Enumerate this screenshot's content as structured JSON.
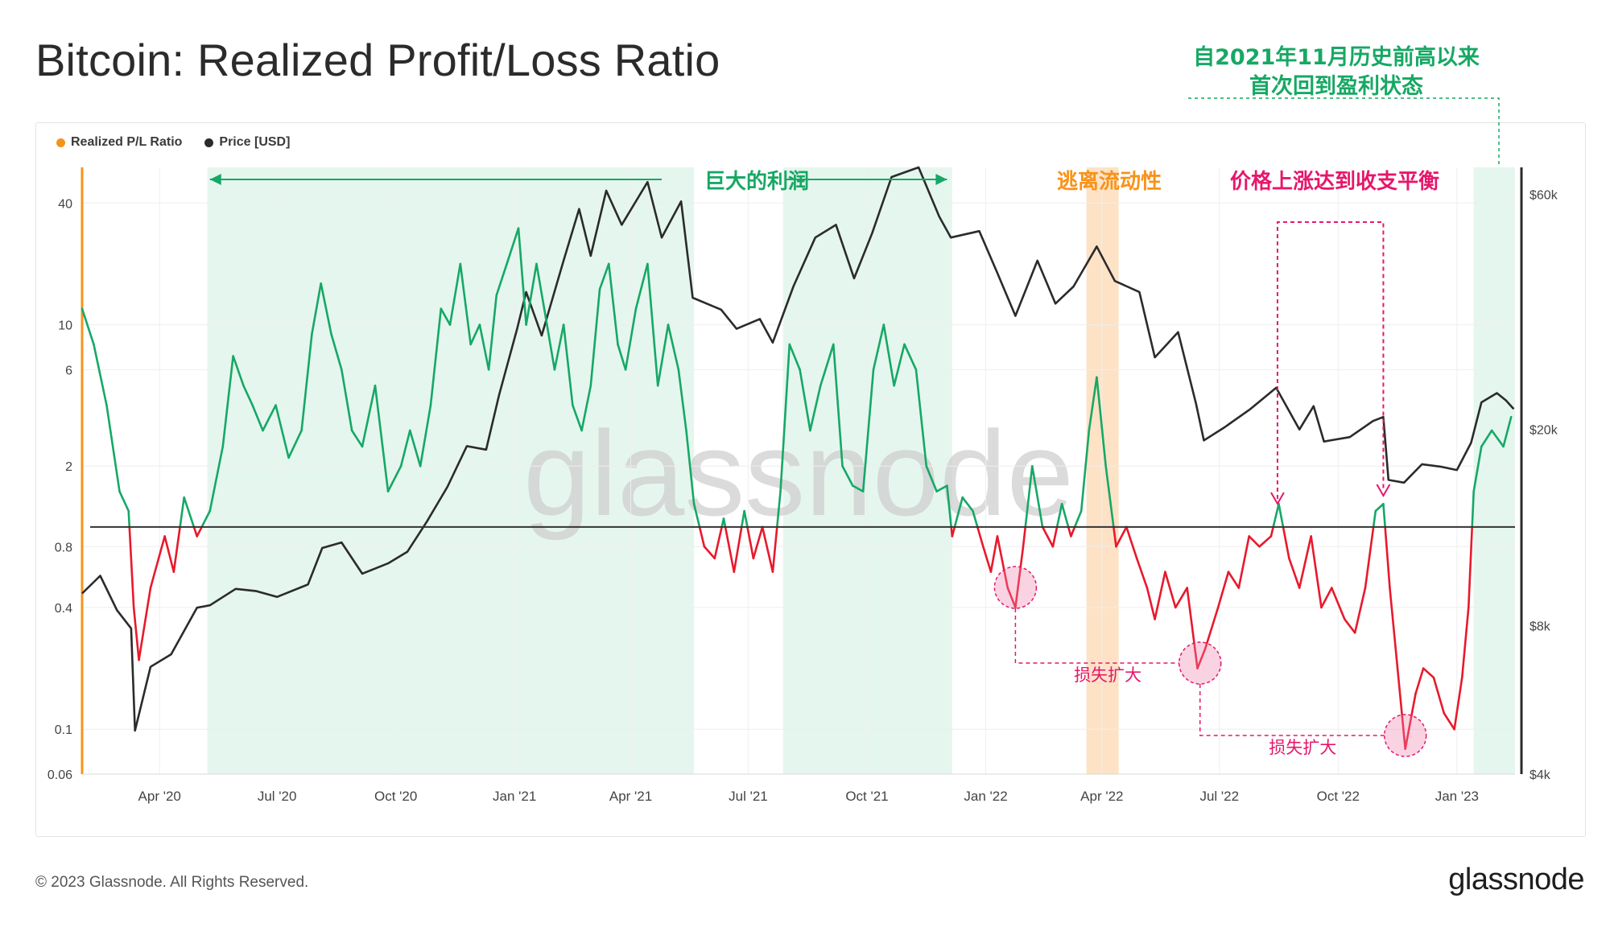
{
  "header": {
    "title": "Bitcoin: Realized Profit/Loss Ratio",
    "annotation_lines": [
      "自2021年11月历史前高以来",
      "首次回到盈利状态"
    ]
  },
  "legend": {
    "items": [
      {
        "label": "Realized P/L Ratio",
        "color": "#f7931a"
      },
      {
        "label": "Price [USD]",
        "color": "#2b2b2b"
      }
    ]
  },
  "footer": {
    "copyright": "© 2023 Glassnode. All Rights Reserved.",
    "brand": "glassnode"
  },
  "colors": {
    "profit": "#16a866",
    "loss": "#e8192c",
    "price": "#2b2b2b",
    "profit_band": "#e5f6ee",
    "orange_band": "#fde2c6",
    "magenta": "#e6176b",
    "orange_text": "#f7931a",
    "green_text": "#17a864"
  },
  "chart_data": {
    "type": "line",
    "title": "Bitcoin: Realized Profit/Loss Ratio",
    "watermark": "glassnode",
    "x_ticks": [
      "Apr '20",
      "Jul '20",
      "Oct '20",
      "Jan '21",
      "Apr '21",
      "Jul '21",
      "Oct '21",
      "Jan '22",
      "Apr '22",
      "Jul '22",
      "Oct '22",
      "Jan '23"
    ],
    "x_range": [
      "2020-02-01",
      "2023-02-15"
    ],
    "left_axis": {
      "label": "Realized P/L Ratio",
      "scale": "log",
      "ticks": [
        0.06,
        0.1,
        0.4,
        0.8,
        2,
        6,
        10,
        40
      ],
      "range": [
        0.06,
        60
      ]
    },
    "right_axis": {
      "label": "Price [USD]",
      "scale": "log",
      "ticks": [
        "$4k",
        "$8k",
        "$20k",
        "$60k"
      ],
      "tick_values": [
        4000,
        8000,
        20000,
        60000
      ],
      "range": [
        4000,
        68000
      ]
    },
    "baseline": 1,
    "series": [
      {
        "name": "Realized P/L Ratio",
        "points": [
          [
            "2020-02-01",
            12
          ],
          [
            "2020-02-10",
            8
          ],
          [
            "2020-02-20",
            4
          ],
          [
            "2020-03-01",
            1.5
          ],
          [
            "2020-03-08",
            1.2
          ],
          [
            "2020-03-12",
            0.4
          ],
          [
            "2020-03-16",
            0.22
          ],
          [
            "2020-03-25",
            0.5
          ],
          [
            "2020-04-05",
            0.9
          ],
          [
            "2020-04-12",
            0.6
          ],
          [
            "2020-04-20",
            1.4
          ],
          [
            "2020-04-30",
            0.9
          ],
          [
            "2020-05-10",
            1.2
          ],
          [
            "2020-05-20",
            2.5
          ],
          [
            "2020-05-28",
            7
          ],
          [
            "2020-06-05",
            5
          ],
          [
            "2020-06-12",
            4
          ],
          [
            "2020-06-20",
            3
          ],
          [
            "2020-06-30",
            4
          ],
          [
            "2020-07-10",
            2.2
          ],
          [
            "2020-07-20",
            3
          ],
          [
            "2020-07-28",
            9
          ],
          [
            "2020-08-04",
            16
          ],
          [
            "2020-08-12",
            9
          ],
          [
            "2020-08-20",
            6
          ],
          [
            "2020-08-28",
            3
          ],
          [
            "2020-09-05",
            2.5
          ],
          [
            "2020-09-15",
            5
          ],
          [
            "2020-09-25",
            1.5
          ],
          [
            "2020-10-05",
            2
          ],
          [
            "2020-10-12",
            3
          ],
          [
            "2020-10-20",
            2
          ],
          [
            "2020-10-28",
            4
          ],
          [
            "2020-11-05",
            12
          ],
          [
            "2020-11-12",
            10
          ],
          [
            "2020-11-20",
            20
          ],
          [
            "2020-11-28",
            8
          ],
          [
            "2020-12-05",
            10
          ],
          [
            "2020-12-12",
            6
          ],
          [
            "2020-12-18",
            14
          ],
          [
            "2020-12-26",
            20
          ],
          [
            "2021-01-04",
            30
          ],
          [
            "2021-01-10",
            10
          ],
          [
            "2021-01-18",
            20
          ],
          [
            "2021-01-24",
            12
          ],
          [
            "2021-02-01",
            6
          ],
          [
            "2021-02-08",
            10
          ],
          [
            "2021-02-15",
            4
          ],
          [
            "2021-02-22",
            3
          ],
          [
            "2021-03-01",
            5
          ],
          [
            "2021-03-08",
            15
          ],
          [
            "2021-03-15",
            20
          ],
          [
            "2021-03-22",
            8
          ],
          [
            "2021-03-28",
            6
          ],
          [
            "2021-04-05",
            12
          ],
          [
            "2021-04-14",
            20
          ],
          [
            "2021-04-22",
            5
          ],
          [
            "2021-04-30",
            10
          ],
          [
            "2021-05-08",
            6
          ],
          [
            "2021-05-14",
            3
          ],
          [
            "2021-05-20",
            1.3
          ],
          [
            "2021-05-28",
            0.8
          ],
          [
            "2021-06-05",
            0.7
          ],
          [
            "2021-06-12",
            1.1
          ],
          [
            "2021-06-20",
            0.6
          ],
          [
            "2021-06-28",
            1.2
          ],
          [
            "2021-07-05",
            0.7
          ],
          [
            "2021-07-12",
            1.0
          ],
          [
            "2021-07-20",
            0.6
          ],
          [
            "2021-07-26",
            1.5
          ],
          [
            "2021-08-02",
            8
          ],
          [
            "2021-08-10",
            6
          ],
          [
            "2021-08-18",
            3
          ],
          [
            "2021-08-26",
            5
          ],
          [
            "2021-09-05",
            8
          ],
          [
            "2021-09-12",
            2
          ],
          [
            "2021-09-20",
            1.6
          ],
          [
            "2021-09-28",
            1.5
          ],
          [
            "2021-10-06",
            6
          ],
          [
            "2021-10-14",
            10
          ],
          [
            "2021-10-22",
            5
          ],
          [
            "2021-10-30",
            8
          ],
          [
            "2021-11-08",
            6
          ],
          [
            "2021-11-16",
            2
          ],
          [
            "2021-11-24",
            1.5
          ],
          [
            "2021-12-02",
            1.6
          ],
          [
            "2021-12-06",
            0.9
          ],
          [
            "2021-12-14",
            1.4
          ],
          [
            "2021-12-22",
            1.2
          ],
          [
            "2021-12-30",
            0.8
          ],
          [
            "2022-01-05",
            0.6
          ],
          [
            "2022-01-10",
            0.9
          ],
          [
            "2022-01-18",
            0.5
          ],
          [
            "2022-01-24",
            0.4
          ],
          [
            "2022-01-30",
            0.8
          ],
          [
            "2022-02-06",
            2
          ],
          [
            "2022-02-14",
            1
          ],
          [
            "2022-02-22",
            0.8
          ],
          [
            "2022-03-01",
            1.3
          ],
          [
            "2022-03-08",
            0.9
          ],
          [
            "2022-03-16",
            1.2
          ],
          [
            "2022-03-22",
            3
          ],
          [
            "2022-03-28",
            5.5
          ],
          [
            "2022-04-04",
            2
          ],
          [
            "2022-04-12",
            0.8
          ],
          [
            "2022-04-20",
            1.0
          ],
          [
            "2022-04-28",
            0.7
          ],
          [
            "2022-05-06",
            0.5
          ],
          [
            "2022-05-12",
            0.35
          ],
          [
            "2022-05-20",
            0.6
          ],
          [
            "2022-05-28",
            0.4
          ],
          [
            "2022-06-06",
            0.5
          ],
          [
            "2022-06-14",
            0.2
          ],
          [
            "2022-06-20",
            0.25
          ],
          [
            "2022-06-30",
            0.4
          ],
          [
            "2022-07-08",
            0.6
          ],
          [
            "2022-07-16",
            0.5
          ],
          [
            "2022-07-24",
            0.9
          ],
          [
            "2022-08-01",
            0.8
          ],
          [
            "2022-08-10",
            0.9
          ],
          [
            "2022-08-16",
            1.3
          ],
          [
            "2022-08-24",
            0.7
          ],
          [
            "2022-09-01",
            0.5
          ],
          [
            "2022-09-10",
            0.9
          ],
          [
            "2022-09-18",
            0.4
          ],
          [
            "2022-09-26",
            0.5
          ],
          [
            "2022-10-06",
            0.35
          ],
          [
            "2022-10-14",
            0.3
          ],
          [
            "2022-10-22",
            0.5
          ],
          [
            "2022-10-30",
            1.2
          ],
          [
            "2022-11-05",
            1.3
          ],
          [
            "2022-11-10",
            0.5
          ],
          [
            "2022-11-16",
            0.2
          ],
          [
            "2022-11-22",
            0.08
          ],
          [
            "2022-11-30",
            0.15
          ],
          [
            "2022-12-06",
            0.2
          ],
          [
            "2022-12-14",
            0.18
          ],
          [
            "2022-12-22",
            0.12
          ],
          [
            "2022-12-30",
            0.1
          ],
          [
            "2023-01-05",
            0.18
          ],
          [
            "2023-01-10",
            0.4
          ],
          [
            "2023-01-14",
            1.5
          ],
          [
            "2023-01-20",
            2.5
          ],
          [
            "2023-01-28",
            3.0
          ],
          [
            "2023-02-06",
            2.5
          ],
          [
            "2023-02-12",
            3.5
          ]
        ]
      },
      {
        "name": "Price [USD]",
        "points": [
          [
            "2020-02-01",
            9300
          ],
          [
            "2020-02-15",
            10100
          ],
          [
            "2020-02-28",
            8600
          ],
          [
            "2020-03-10",
            7900
          ],
          [
            "2020-03-13",
            4900
          ],
          [
            "2020-03-25",
            6600
          ],
          [
            "2020-04-10",
            7000
          ],
          [
            "2020-04-30",
            8700
          ],
          [
            "2020-05-10",
            8800
          ],
          [
            "2020-05-30",
            9500
          ],
          [
            "2020-06-15",
            9400
          ],
          [
            "2020-07-01",
            9150
          ],
          [
            "2020-07-25",
            9700
          ],
          [
            "2020-08-05",
            11500
          ],
          [
            "2020-08-20",
            11800
          ],
          [
            "2020-09-05",
            10200
          ],
          [
            "2020-09-25",
            10700
          ],
          [
            "2020-10-10",
            11300
          ],
          [
            "2020-10-25",
            13000
          ],
          [
            "2020-11-10",
            15300
          ],
          [
            "2020-11-25",
            18500
          ],
          [
            "2020-12-10",
            18200
          ],
          [
            "2020-12-20",
            23500
          ],
          [
            "2021-01-03",
            32000
          ],
          [
            "2021-01-10",
            38000
          ],
          [
            "2021-01-22",
            31000
          ],
          [
            "2021-02-08",
            44000
          ],
          [
            "2021-02-20",
            56000
          ],
          [
            "2021-03-01",
            45000
          ],
          [
            "2021-03-13",
            61000
          ],
          [
            "2021-03-25",
            52000
          ],
          [
            "2021-04-14",
            63500
          ],
          [
            "2021-04-25",
            49000
          ],
          [
            "2021-05-10",
            58000
          ],
          [
            "2021-05-19",
            37000
          ],
          [
            "2021-06-10",
            35000
          ],
          [
            "2021-06-22",
            32000
          ],
          [
            "2021-07-10",
            33500
          ],
          [
            "2021-07-20",
            30000
          ],
          [
            "2021-08-05",
            39000
          ],
          [
            "2021-08-22",
            49000
          ],
          [
            "2021-09-07",
            52000
          ],
          [
            "2021-09-21",
            40500
          ],
          [
            "2021-10-05",
            50000
          ],
          [
            "2021-10-20",
            65000
          ],
          [
            "2021-11-10",
            68000
          ],
          [
            "2021-11-26",
            54000
          ],
          [
            "2021-12-05",
            49000
          ],
          [
            "2021-12-27",
            50500
          ],
          [
            "2022-01-10",
            41500
          ],
          [
            "2022-01-24",
            34000
          ],
          [
            "2022-02-10",
            44000
          ],
          [
            "2022-02-24",
            36000
          ],
          [
            "2022-03-10",
            39000
          ],
          [
            "2022-03-28",
            47000
          ],
          [
            "2022-04-11",
            40000
          ],
          [
            "2022-04-30",
            38000
          ],
          [
            "2022-05-12",
            28000
          ],
          [
            "2022-05-30",
            31500
          ],
          [
            "2022-06-13",
            22500
          ],
          [
            "2022-06-19",
            19000
          ],
          [
            "2022-07-05",
            20200
          ],
          [
            "2022-07-25",
            22000
          ],
          [
            "2022-08-14",
            24300
          ],
          [
            "2022-09-01",
            20000
          ],
          [
            "2022-09-12",
            22300
          ],
          [
            "2022-09-20",
            18900
          ],
          [
            "2022-10-10",
            19300
          ],
          [
            "2022-10-28",
            20800
          ],
          [
            "2022-11-05",
            21200
          ],
          [
            "2022-11-09",
            15800
          ],
          [
            "2022-11-21",
            15600
          ],
          [
            "2022-12-05",
            17000
          ],
          [
            "2022-12-20",
            16800
          ],
          [
            "2023-01-01",
            16550
          ],
          [
            "2023-01-12",
            18800
          ],
          [
            "2023-01-20",
            22700
          ],
          [
            "2023-02-01",
            23700
          ],
          [
            "2023-02-08",
            22900
          ],
          [
            "2023-02-14",
            22000
          ]
        ]
      }
    ],
    "shaded_regions": [
      {
        "start": "2020-05-08",
        "end": "2021-05-20",
        "kind": "profit"
      },
      {
        "start": "2021-07-28",
        "end": "2021-12-06",
        "kind": "profit"
      },
      {
        "start": "2022-03-20",
        "end": "2022-04-14",
        "kind": "liquidity"
      },
      {
        "start": "2023-01-14",
        "end": "2023-02-15",
        "kind": "profit"
      }
    ],
    "annotations": {
      "huge_profit": "巨大的利润",
      "liquidity_escape": "逃离流动性",
      "price_breakeven": "价格上涨达到收支平衡",
      "loss_expand_1": "损失扩大",
      "loss_expand_2": "损失扩大"
    }
  }
}
